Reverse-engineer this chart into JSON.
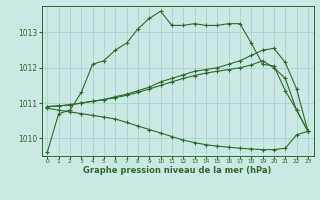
{
  "bg_color": "#cce8e4",
  "grid_color": "#a8d4cf",
  "line_color": "#2d6a2d",
  "xlabel": "Graphe pression niveau de la mer (hPa)",
  "ylim": [
    1009.5,
    1013.75
  ],
  "xlim": [
    -0.5,
    23.5
  ],
  "yticks": [
    1010,
    1011,
    1012,
    1013
  ],
  "xticks": [
    0,
    1,
    2,
    3,
    4,
    5,
    6,
    7,
    8,
    9,
    10,
    11,
    12,
    13,
    14,
    15,
    16,
    17,
    18,
    19,
    20,
    21,
    22,
    23
  ],
  "series": [
    {
      "x": [
        0,
        1,
        2,
        3,
        4,
        5,
        6,
        7,
        8,
        9,
        10,
        11,
        12,
        13,
        14,
        15,
        16,
        17,
        18,
        19,
        20,
        21,
        22,
        23
      ],
      "y": [
        1009.6,
        1010.7,
        1010.8,
        1011.3,
        1012.1,
        1012.2,
        1012.5,
        1012.7,
        1013.1,
        1013.4,
        1013.6,
        1013.2,
        1013.2,
        1013.25,
        1013.2,
        1013.2,
        1013.25,
        1013.25,
        1012.7,
        1012.1,
        1012.05,
        1011.35,
        1010.8,
        1010.2
      ]
    },
    {
      "x": [
        0,
        1,
        2,
        3,
        4,
        5,
        6,
        7,
        8,
        9,
        10,
        11,
        12,
        13,
        14,
        15,
        16,
        17,
        18,
        19,
        20,
        21,
        22,
        23
      ],
      "y": [
        1010.9,
        1010.92,
        1010.95,
        1011.0,
        1011.05,
        1011.1,
        1011.18,
        1011.25,
        1011.35,
        1011.45,
        1011.6,
        1011.7,
        1011.8,
        1011.9,
        1011.95,
        1012.0,
        1012.1,
        1012.2,
        1012.35,
        1012.5,
        1012.55,
        1012.15,
        1011.4,
        1010.2
      ]
    },
    {
      "x": [
        0,
        1,
        2,
        3,
        4,
        5,
        6,
        7,
        8,
        9,
        10,
        11,
        12,
        13,
        14,
        15,
        16,
        17,
        18,
        19,
        20,
        21,
        22,
        23
      ],
      "y": [
        1010.9,
        1010.92,
        1010.95,
        1011.0,
        1011.05,
        1011.1,
        1011.15,
        1011.22,
        1011.3,
        1011.4,
        1011.5,
        1011.6,
        1011.7,
        1011.78,
        1011.85,
        1011.9,
        1011.95,
        1012.0,
        1012.08,
        1012.2,
        1012.0,
        1011.7,
        1010.8,
        1010.2
      ]
    },
    {
      "x": [
        0,
        1,
        2,
        3,
        4,
        5,
        6,
        7,
        8,
        9,
        10,
        11,
        12,
        13,
        14,
        15,
        16,
        17,
        18,
        19,
        20,
        21,
        22,
        23
      ],
      "y": [
        1010.85,
        1010.8,
        1010.75,
        1010.7,
        1010.65,
        1010.6,
        1010.55,
        1010.45,
        1010.35,
        1010.25,
        1010.15,
        1010.05,
        1009.95,
        1009.88,
        1009.82,
        1009.78,
        1009.75,
        1009.72,
        1009.7,
        1009.68,
        1009.68,
        1009.72,
        1010.1,
        1010.2
      ]
    }
  ]
}
